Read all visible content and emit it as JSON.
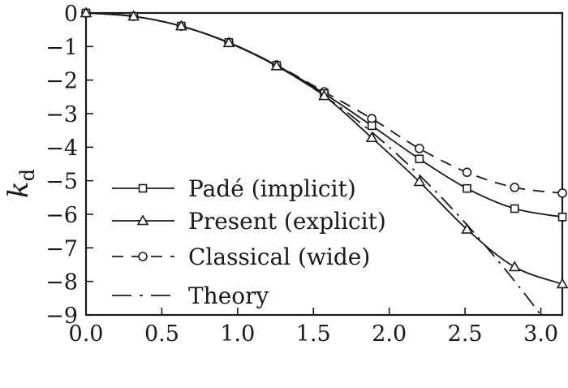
{
  "chart_data": {
    "type": "line",
    "title": "",
    "xlabel": "",
    "ylabel": "k_d",
    "ylabel_main": "k",
    "ylabel_sub": "d",
    "xlim": [
      0,
      3.1416
    ],
    "ylim": [
      -9,
      0
    ],
    "grid": false,
    "legend_position": "lower left",
    "x_ticks": [
      0.0,
      0.5,
      1.0,
      1.5,
      2.0,
      2.5,
      3.0
    ],
    "x_tick_labels": [
      "0.0",
      "0.5",
      "1.0",
      "1.5",
      "2.0",
      "2.5",
      "3.0"
    ],
    "y_ticks": [
      0,
      -1,
      -2,
      -3,
      -4,
      -5,
      -6,
      -7,
      -8,
      -9
    ],
    "y_tick_labels": [
      "0",
      "−1",
      "−2",
      "−3",
      "−4",
      "−5",
      "−6",
      "−7",
      "−8",
      "−9"
    ],
    "x": [
      0.0,
      0.314,
      0.628,
      0.942,
      1.257,
      1.571,
      1.885,
      2.199,
      2.513,
      2.827,
      3.142
    ],
    "series": [
      {
        "name": "Padé (implicit)",
        "marker": "square",
        "line": "solid",
        "values": [
          0.0,
          -0.1,
          -0.39,
          -0.88,
          -1.56,
          -2.4,
          -3.36,
          -4.35,
          -5.23,
          -5.83,
          -6.08
        ]
      },
      {
        "name": "Present (explicit)",
        "marker": "triangle",
        "line": "solid",
        "values": [
          0.0,
          -0.1,
          -0.39,
          -0.89,
          -1.58,
          -2.47,
          -3.72,
          -5.03,
          -6.45,
          -7.57,
          -8.08
        ]
      },
      {
        "name": "Classical (wide)",
        "marker": "circle",
        "line": "dashed",
        "values": [
          0.0,
          -0.1,
          -0.39,
          -0.88,
          -1.55,
          -2.35,
          -3.15,
          -4.04,
          -4.75,
          -5.2,
          -5.37
        ]
      },
      {
        "name": "Theory",
        "marker": "none",
        "line": "dashdot",
        "formula": "k_d = -x^2",
        "x": [
          0.0,
          0.25,
          0.5,
          0.75,
          1.0,
          1.25,
          1.5,
          1.75,
          2.0,
          2.25,
          2.5,
          2.75,
          3.0
        ],
        "values": [
          0.0,
          -0.0625,
          -0.25,
          -0.5625,
          -1.0,
          -1.5625,
          -2.25,
          -3.0625,
          -4.0,
          -5.0625,
          -6.25,
          -7.5625,
          -9.0
        ]
      }
    ]
  }
}
